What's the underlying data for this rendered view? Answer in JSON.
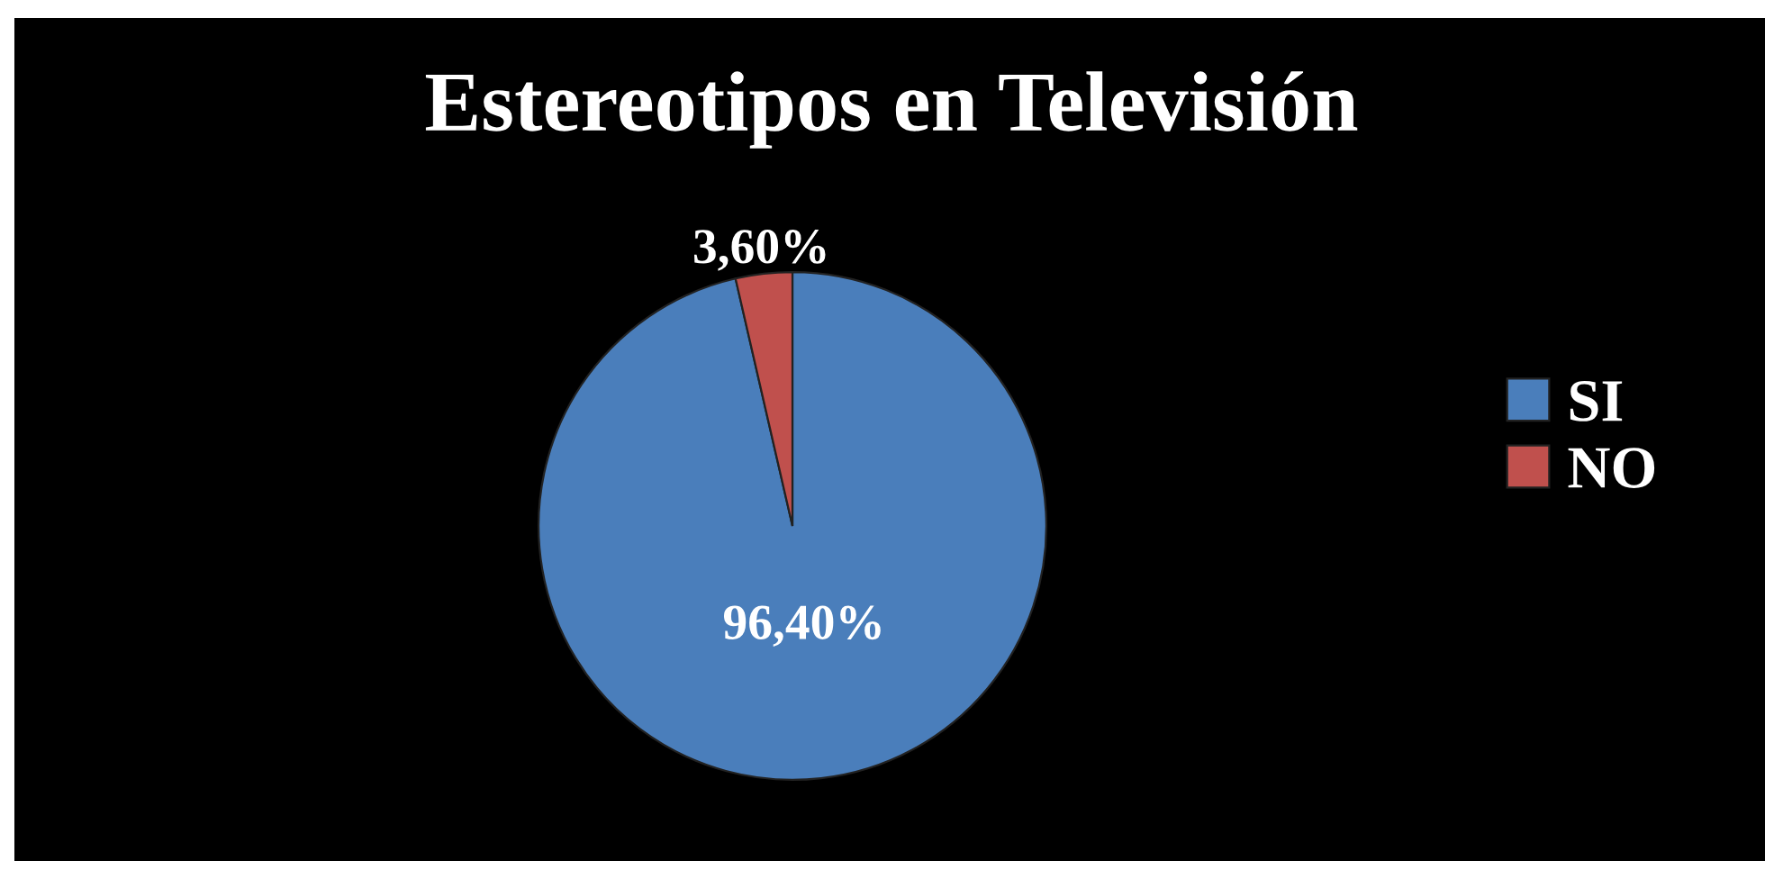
{
  "chart_data": {
    "type": "pie",
    "title": "Estereotipos en Televisión",
    "categories": [
      "SI",
      "NO"
    ],
    "values": [
      96.4,
      3.6
    ],
    "value_labels": [
      "96,40%",
      "3,60%"
    ],
    "colors": [
      "#4a7ebb",
      "#c0504d"
    ],
    "legend": "right"
  }
}
